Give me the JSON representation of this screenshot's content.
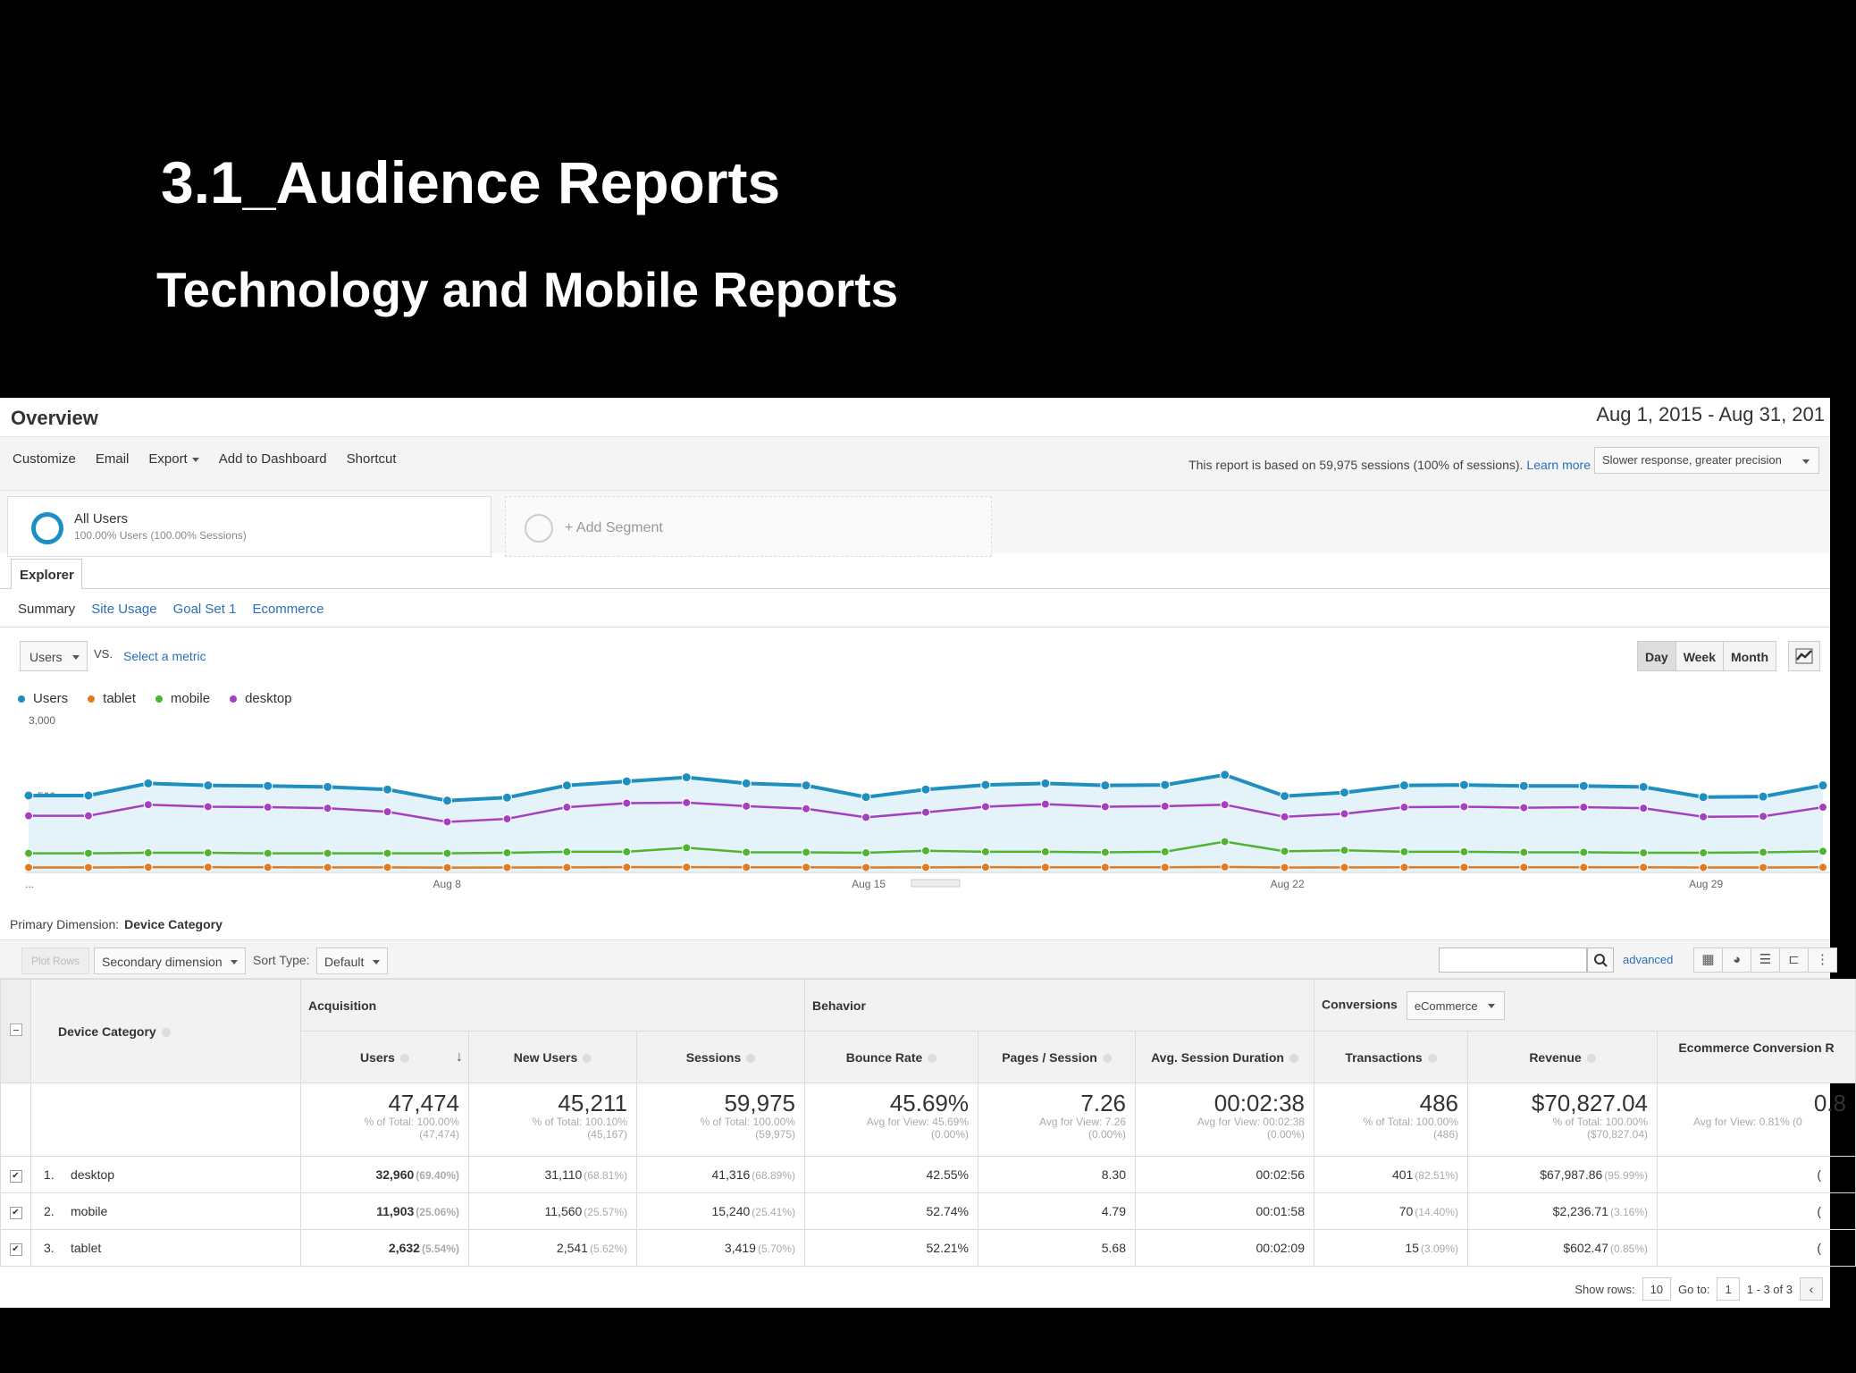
{
  "slide": {
    "title": "3.1_Audience Reports",
    "subtitle": "Technology and Mobile Reports"
  },
  "header": {
    "title": "Overview",
    "date_range": "Aug 1, 2015 - Aug 31, 201"
  },
  "toolbar": {
    "customize": "Customize",
    "email": "Email",
    "export": "Export",
    "add_to_dashboard": "Add to Dashboard",
    "shortcut": "Shortcut",
    "report_note": "This report is based on 59,975 sessions (100% of sessions).",
    "learn_more": "Learn more",
    "precision": "Slower response, greater precision"
  },
  "segments": {
    "all_users": "All Users",
    "all_users_detail": "100.00% Users (100.00% Sessions)",
    "add_segment": "+ Add Segment"
  },
  "explorer": {
    "tab": "Explorer",
    "subtabs": [
      "Summary",
      "Site Usage",
      "Goal Set 1",
      "Ecommerce"
    ]
  },
  "chart_controls": {
    "metric": "Users",
    "vs": "VS.",
    "select_metric": "Select a metric",
    "periods": [
      "Day",
      "Week",
      "Month"
    ]
  },
  "chart_data": {
    "type": "line",
    "x": [
      "Aug 1",
      "Aug 2",
      "Aug 3",
      "Aug 4",
      "Aug 5",
      "Aug 6",
      "Aug 7",
      "Aug 8",
      "Aug 9",
      "Aug 10",
      "Aug 11",
      "Aug 12",
      "Aug 13",
      "Aug 14",
      "Aug 15",
      "Aug 16",
      "Aug 17",
      "Aug 18",
      "Aug 19",
      "Aug 20",
      "Aug 21",
      "Aug 22",
      "Aug 23",
      "Aug 24",
      "Aug 25",
      "Aug 26",
      "Aug 27",
      "Aug 28",
      "Aug 29",
      "Aug 30",
      "Aug 31"
    ],
    "x_tick_labels": [
      "...",
      "Aug 8",
      "Aug 15",
      "Aug 22",
      "Aug 29"
    ],
    "y_tick_labels": [
      "3,000",
      "1,500"
    ],
    "ylim": [
      0,
      3000
    ],
    "grid": false,
    "legend_position": "top-left",
    "series": [
      {
        "name": "Users",
        "color": "#1f8fbf",
        "values": [
          1500,
          1500,
          1740,
          1700,
          1690,
          1670,
          1620,
          1400,
          1460,
          1700,
          1780,
          1860,
          1740,
          1700,
          1470,
          1620,
          1710,
          1740,
          1700,
          1710,
          1910,
          1490,
          1560,
          1700,
          1710,
          1690,
          1690,
          1670,
          1470,
          1480,
          1700
        ]
      },
      {
        "name": "tablet",
        "color": "#e07b1f",
        "values": [
          80,
          80,
          85,
          85,
          83,
          82,
          82,
          78,
          80,
          82,
          85,
          86,
          84,
          84,
          80,
          82,
          85,
          84,
          83,
          84,
          90,
          80,
          81,
          83,
          84,
          83,
          83,
          83,
          80,
          80,
          84
        ]
      },
      {
        "name": "mobile",
        "color": "#50b432",
        "values": [
          360,
          360,
          370,
          370,
          360,
          360,
          360,
          360,
          370,
          390,
          390,
          470,
          380,
          380,
          370,
          410,
          390,
          390,
          380,
          390,
          590,
          400,
          420,
          390,
          390,
          380,
          380,
          370,
          370,
          380,
          400
        ]
      },
      {
        "name": "desktop",
        "color": "#a43fc0",
        "values": [
          1100,
          1100,
          1320,
          1280,
          1270,
          1250,
          1180,
          980,
          1040,
          1270,
          1350,
          1360,
          1290,
          1240,
          1070,
          1170,
          1280,
          1330,
          1280,
          1290,
          1320,
          1080,
          1140,
          1270,
          1280,
          1260,
          1270,
          1250,
          1080,
          1090,
          1270
        ]
      }
    ]
  },
  "primary_dimension": {
    "label": "Primary Dimension:",
    "value": "Device Category"
  },
  "table_toolbar": {
    "plot_rows": "Plot Rows",
    "secondary_dimension": "Secondary dimension",
    "sort_type_label": "Sort Type:",
    "sort_type": "Default",
    "advanced": "advanced"
  },
  "table": {
    "groups": {
      "device_category": "Device Category",
      "acquisition": "Acquisition",
      "behavior": "Behavior",
      "conversions": "Conversions",
      "conversions_select": "eCommerce"
    },
    "columns": [
      "Users",
      "New Users",
      "Sessions",
      "Bounce Rate",
      "Pages / Session",
      "Avg. Session Duration",
      "Transactions",
      "Revenue",
      "Ecommerce Conversion R"
    ],
    "totals": [
      {
        "value": "47,474",
        "line1": "% of Total: 100.00%",
        "line2": "(47,474)"
      },
      {
        "value": "45,211",
        "line1": "% of Total: 100.10%",
        "line2": "(45,167)"
      },
      {
        "value": "59,975",
        "line1": "% of Total: 100.00%",
        "line2": "(59,975)"
      },
      {
        "value": "45.69%",
        "line1": "Avg for View: 45.69%",
        "line2": "(0.00%)"
      },
      {
        "value": "7.26",
        "line1": "Avg for View: 7.26",
        "line2": "(0.00%)"
      },
      {
        "value": "00:02:38",
        "line1": "Avg for View: 00:02:38",
        "line2": "(0.00%)"
      },
      {
        "value": "486",
        "line1": "% of Total: 100.00%",
        "line2": "(486)"
      },
      {
        "value": "$70,827.04",
        "line1": "% of Total: 100.00%",
        "line2": "($70,827.04)"
      },
      {
        "value": "0.8",
        "line1": "Avg for View: 0.81% (0",
        "line2": ""
      }
    ],
    "rows": [
      {
        "index": "1.",
        "device": "desktop",
        "users": "32,960",
        "users_pct": "(69.40%)",
        "new_users": "31,110",
        "new_users_pct": "(68.81%)",
        "sessions": "41,316",
        "sessions_pct": "(68.89%)",
        "bounce_rate": "42.55%",
        "pages_session": "8.30",
        "avg_duration": "00:02:56",
        "transactions": "401",
        "transactions_pct": "(82.51%)",
        "revenue": "$67,987.86",
        "revenue_pct": "(95.99%)",
        "ecr": "("
      },
      {
        "index": "2.",
        "device": "mobile",
        "users": "11,903",
        "users_pct": "(25.06%)",
        "new_users": "11,560",
        "new_users_pct": "(25.57%)",
        "sessions": "15,240",
        "sessions_pct": "(25.41%)",
        "bounce_rate": "52.74%",
        "pages_session": "4.79",
        "avg_duration": "00:01:58",
        "transactions": "70",
        "transactions_pct": "(14.40%)",
        "revenue": "$2,236.71",
        "revenue_pct": "(3.16%)",
        "ecr": "("
      },
      {
        "index": "3.",
        "device": "tablet",
        "users": "2,632",
        "users_pct": "(5.54%)",
        "new_users": "2,541",
        "new_users_pct": "(5.62%)",
        "sessions": "3,419",
        "sessions_pct": "(5.70%)",
        "bounce_rate": "52.21%",
        "pages_session": "5.68",
        "avg_duration": "00:02:09",
        "transactions": "15",
        "transactions_pct": "(3.09%)",
        "revenue": "$602.47",
        "revenue_pct": "(0.85%)",
        "ecr": "("
      }
    ]
  },
  "pager": {
    "show_rows_label": "Show rows:",
    "show_rows": "10",
    "go_to_label": "Go to:",
    "go_to": "1",
    "range": "1 - 3 of 3"
  },
  "colors": {
    "link": "#2a6ebb",
    "users_line": "#1f8fbf"
  }
}
